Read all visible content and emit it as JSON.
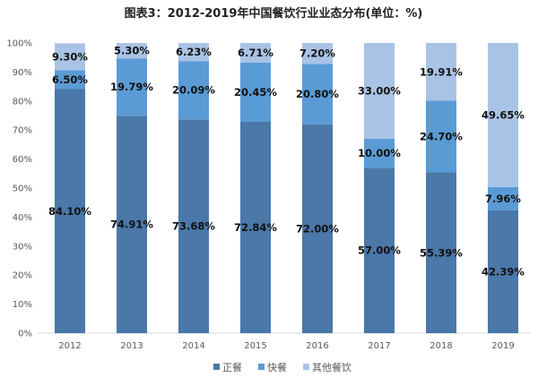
{
  "chart_data": {
    "type": "bar",
    "stacked": true,
    "title": "图表3：2012-2019年中国餐饮行业业态分布(单位：%)",
    "categories": [
      "2012",
      "2013",
      "2014",
      "2015",
      "2016",
      "2017",
      "2018",
      "2019"
    ],
    "series": [
      {
        "name": "正餐",
        "color": "#4a78a8",
        "values": [
          84.1,
          74.91,
          73.68,
          72.84,
          72.0,
          57.0,
          55.39,
          42.39
        ]
      },
      {
        "name": "快餐",
        "color": "#5b9bd5",
        "values": [
          6.5,
          19.79,
          20.09,
          20.45,
          20.8,
          10.0,
          24.7,
          7.96
        ]
      },
      {
        "name": "其他餐饮",
        "color": "#a9c3e6",
        "values": [
          9.3,
          5.3,
          6.23,
          6.71,
          7.2,
          33.0,
          19.91,
          49.65
        ]
      }
    ],
    "ylim": [
      0,
      100
    ],
    "yticks": [
      "0%",
      "10%",
      "20%",
      "30%",
      "40%",
      "50%",
      "60%",
      "70%",
      "80%",
      "90%",
      "100%"
    ],
    "grid": false,
    "legend_position": "bottom",
    "data_label_suffix": "%"
  }
}
